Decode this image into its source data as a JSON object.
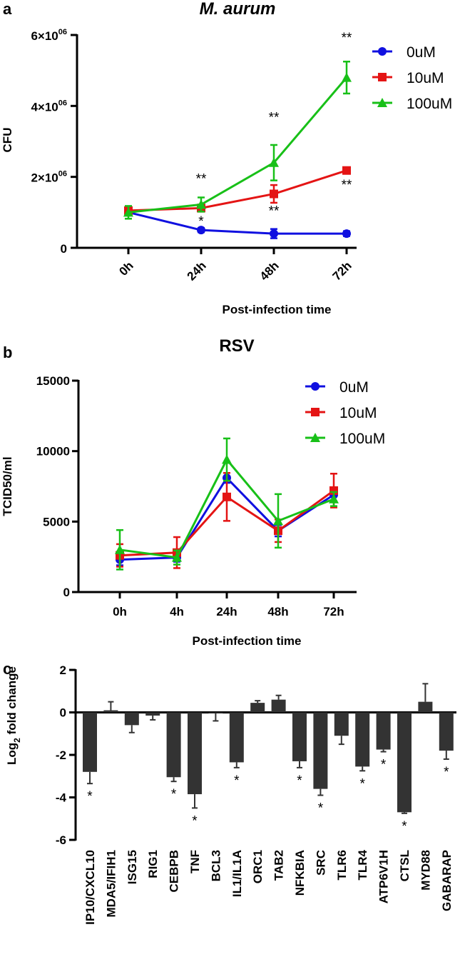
{
  "chart_data": [
    {
      "panel": "a",
      "type": "line",
      "title": "M. aurum",
      "xlabel": "Post-infection time",
      "ylabel": "CFU",
      "categories": [
        "0h",
        "24h",
        "48h",
        "72h"
      ],
      "ylim": [
        0,
        6000000
      ],
      "yticks": [
        {
          "value": 0,
          "base": "0",
          "exp": ""
        },
        {
          "value": 2000000,
          "base": "2×10",
          "exp": "06"
        },
        {
          "value": 4000000,
          "base": "4×10",
          "exp": "06"
        },
        {
          "value": 6000000,
          "base": "6×10",
          "exp": "06"
        }
      ],
      "series": [
        {
          "name": "0uM",
          "color": "#1010e0",
          "marker": "circle",
          "values": [
            1000000,
            500000,
            400000,
            400000
          ],
          "errors": [
            80000,
            60000,
            130000,
            70000
          ]
        },
        {
          "name": "10uM",
          "color": "#e41414",
          "marker": "square",
          "values": [
            1050000,
            1120000,
            1520000,
            2180000
          ],
          "errors": [
            120000,
            100000,
            250000,
            60000
          ]
        },
        {
          "name": "100uM",
          "color": "#18c018",
          "marker": "triangle",
          "values": [
            1000000,
            1220000,
            2400000,
            4800000
          ],
          "errors": [
            180000,
            200000,
            500000,
            450000
          ]
        }
      ],
      "annotations": [
        {
          "category": "24h",
          "value": 1820000,
          "text": "**"
        },
        {
          "category": "24h",
          "value": 620000,
          "text": "*"
        },
        {
          "category": "48h",
          "value": 3550000,
          "text": "**"
        },
        {
          "category": "48h",
          "value": 920000,
          "text": "**"
        },
        {
          "category": "72h",
          "value": 5800000,
          "text": "**"
        },
        {
          "category": "72h",
          "value": 1650000,
          "text": "**"
        }
      ]
    },
    {
      "panel": "b",
      "type": "line",
      "title": "RSV",
      "xlabel": "Post-infection time",
      "ylabel": "TCID50/ml",
      "categories": [
        "0h",
        "4h",
        "24h",
        "48h",
        "72h"
      ],
      "ylim": [
        0,
        15000
      ],
      "yticks": [
        0,
        5000,
        10000,
        15000
      ],
      "series": [
        {
          "name": "0uM",
          "color": "#1010e0",
          "marker": "circle",
          "values": [
            2300,
            2450,
            8100,
            4350,
            6900
          ],
          "errors": [
            400,
            300,
            350,
            400,
            450
          ]
        },
        {
          "name": "10uM",
          "color": "#e41414",
          "marker": "square",
          "values": [
            2600,
            2800,
            6750,
            4350,
            7200
          ],
          "errors": [
            800,
            1100,
            1700,
            800,
            1200
          ]
        },
        {
          "name": "100uM",
          "color": "#18c018",
          "marker": "triangle",
          "values": [
            3000,
            2450,
            9400,
            5050,
            6600
          ],
          "errors": [
            1400,
            500,
            1500,
            1900,
            500
          ]
        }
      ]
    },
    {
      "panel": "c",
      "type": "bar",
      "ylabel_main": "Log",
      "ylabel_sub": "2",
      "ylabel_rest": " fold change",
      "ylim": [
        -6,
        2
      ],
      "yticks": [
        2,
        0,
        -2,
        -4,
        -6
      ],
      "bar_color": "#333333",
      "categories": [
        "IP10/CXCL10",
        "MDA5/IFIH1",
        "ISG15",
        "RIG1",
        "CEBPB",
        "TNF",
        "BCL3",
        "IL1/IL1A",
        "ORC1",
        "TAB2",
        "NFKBIA",
        "SRC",
        "TLR6",
        "TLR4",
        "ATP6V1H",
        "CTSL",
        "MYD88",
        "GABARAP"
      ],
      "values": [
        -2.8,
        0.1,
        -0.6,
        -0.15,
        -3.05,
        -3.85,
        -0.05,
        -2.35,
        0.45,
        0.6,
        -2.3,
        -3.6,
        -1.1,
        -2.55,
        -1.75,
        -4.7,
        0.5,
        -1.8
      ],
      "errors": [
        0.55,
        0.4,
        0.35,
        0.2,
        0.2,
        0.65,
        0.35,
        0.25,
        0.1,
        0.2,
        0.3,
        0.3,
        0.4,
        0.2,
        0.1,
        0.05,
        0.85,
        0.4
      ],
      "significance": [
        "*",
        "",
        "",
        "",
        "*",
        "*",
        "",
        "*",
        "",
        "",
        "*",
        "*",
        "",
        "*",
        "*",
        "*",
        "",
        "*"
      ]
    }
  ]
}
